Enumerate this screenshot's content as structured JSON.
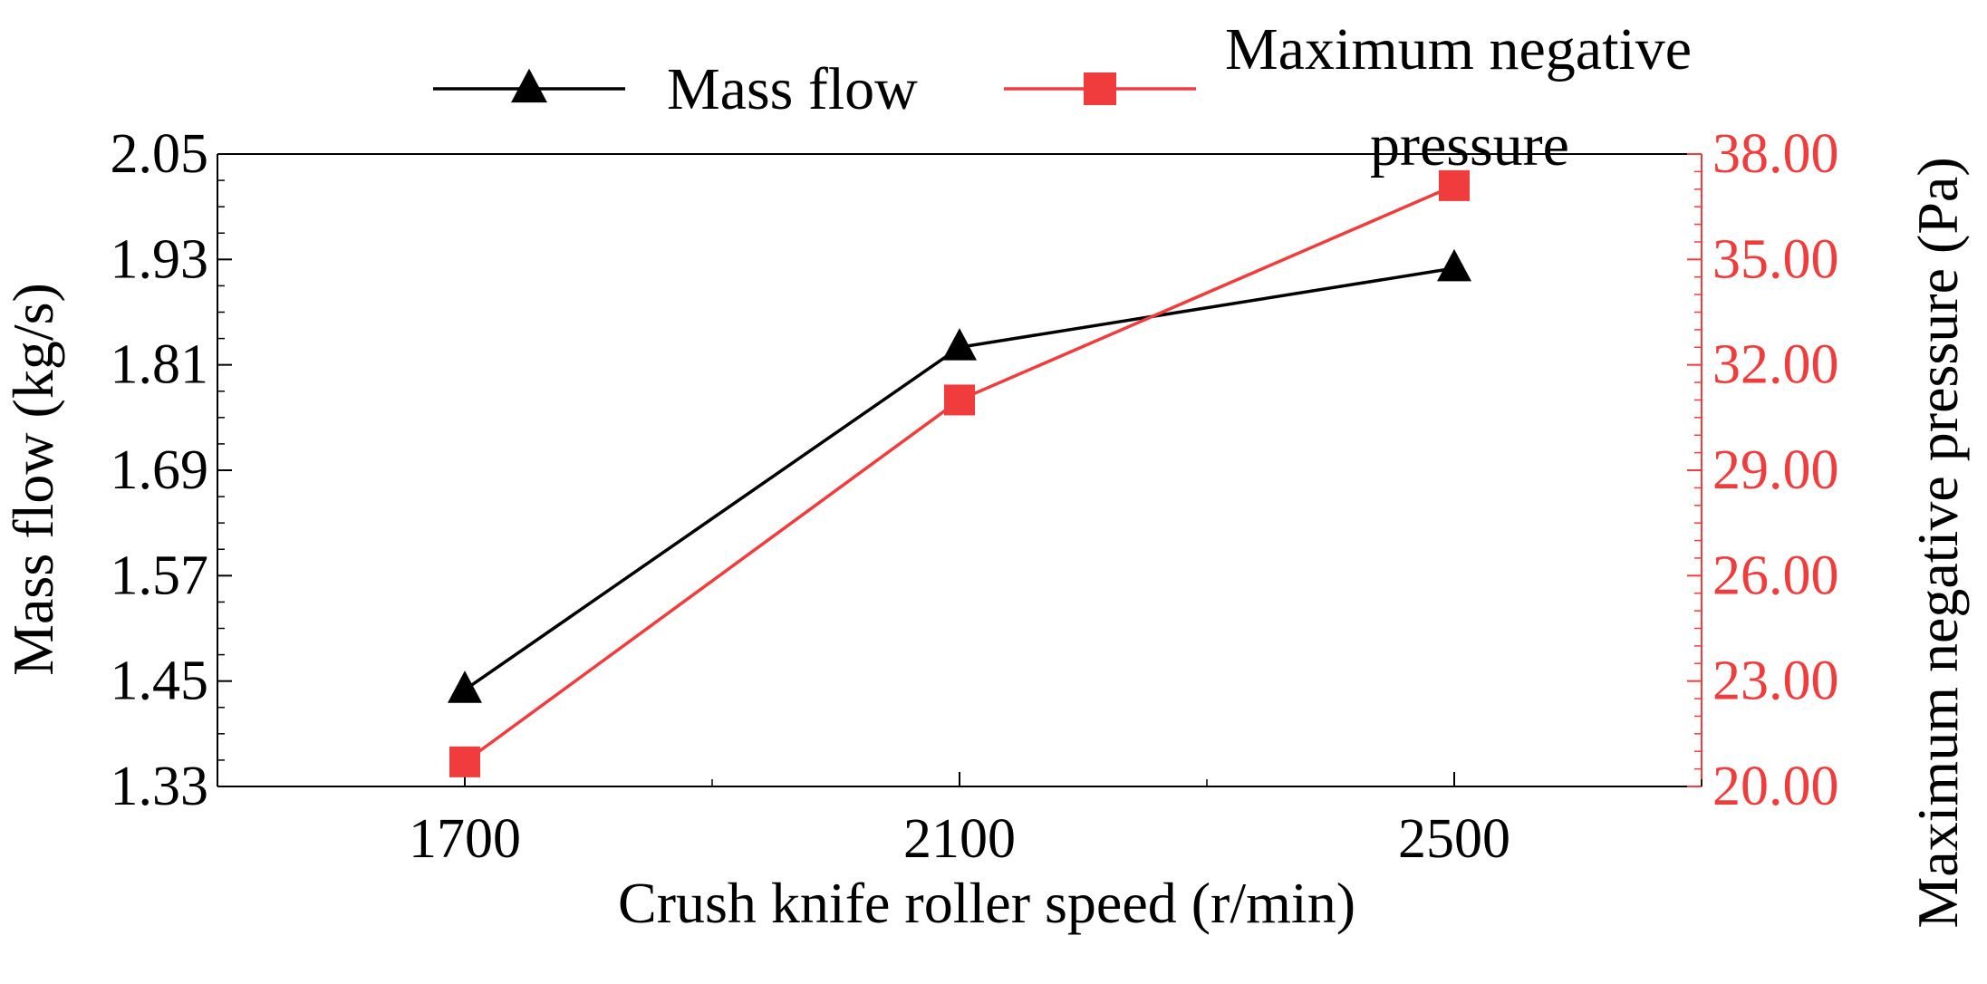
{
  "chart_data": {
    "type": "line",
    "x": [
      1700,
      2100,
      2500
    ],
    "xticks": [
      "1700",
      "2100",
      "2500"
    ],
    "xlim": [
      1500,
      2700
    ],
    "xlabel": "Crush knife roller speed (r/min)",
    "ylabel_left": "Mass flow (kg/s)",
    "ylabel_right": "Maximum negative pressure (Pa)",
    "ylim_left": [
      1.33,
      2.05
    ],
    "ylim_right": [
      20.0,
      38.0
    ],
    "yticks_left": [
      "1.33",
      "1.45",
      "1.57",
      "1.69",
      "1.81",
      "1.93",
      "2.05"
    ],
    "yticks_right": [
      "20.00",
      "23.00",
      "26.00",
      "29.00",
      "32.00",
      "35.00",
      "38.00"
    ],
    "legend_position": "top",
    "series": [
      {
        "name": "Mass flow",
        "axis": "left",
        "marker": "triangle",
        "color": "#000000",
        "values": [
          1.44,
          1.83,
          1.92
        ]
      },
      {
        "name": "Maximum negative pressure",
        "axis": "right",
        "marker": "square",
        "color": "#f03c3c",
        "values": [
          20.7,
          31.0,
          37.1
        ]
      }
    ],
    "legend_label_lines": {
      "mass_flow": [
        "Mass flow"
      ],
      "pressure": [
        "Maximum negative",
        "pressure"
      ]
    }
  }
}
